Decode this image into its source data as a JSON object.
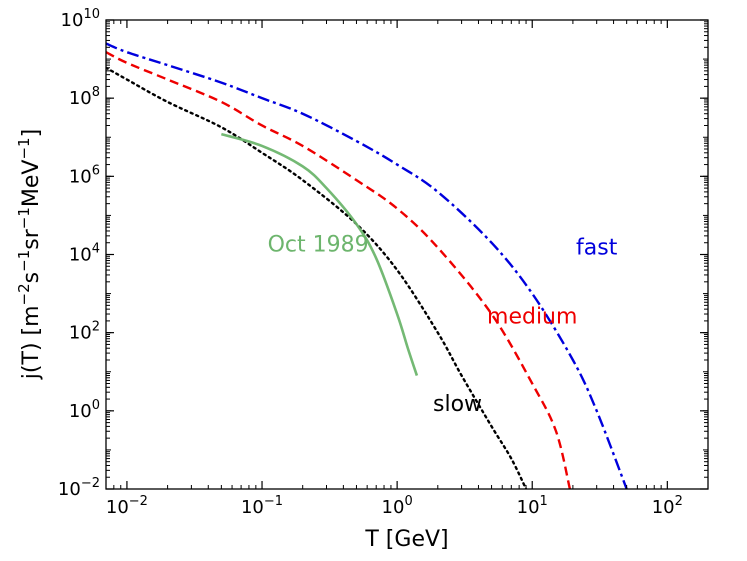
{
  "chart_data": {
    "type": "line",
    "title": "",
    "xlabel": "T [GeV]",
    "ylabel_parts": {
      "prefix": "j(T) [m",
      "exp1": "−2",
      "mid1": "s",
      "exp2": "−1",
      "mid2": "sr",
      "exp3": "−1",
      "mid3": "MeV",
      "exp4": "−1",
      "suffix": "]"
    },
    "xscale": "log",
    "yscale": "log",
    "xlim": [
      0.007,
      200
    ],
    "ylim": [
      0.01,
      10000000000
    ],
    "x_ticks": [
      {
        "value": 0.01,
        "base": "10",
        "exp": "−2"
      },
      {
        "value": 0.1,
        "base": "10",
        "exp": "−1"
      },
      {
        "value": 1,
        "base": "10",
        "exp": "0"
      },
      {
        "value": 10,
        "base": "10",
        "exp": "1"
      },
      {
        "value": 100,
        "base": "10",
        "exp": "2"
      }
    ],
    "y_ticks": [
      {
        "value": 0.01,
        "base": "10",
        "exp": "−2"
      },
      {
        "value": 1,
        "base": "10",
        "exp": "0"
      },
      {
        "value": 100,
        "base": "10",
        "exp": "2"
      },
      {
        "value": 10000,
        "base": "10",
        "exp": "4"
      },
      {
        "value": 1000000,
        "base": "10",
        "exp": "6"
      },
      {
        "value": 100000000,
        "base": "10",
        "exp": "8"
      },
      {
        "value": 10000000000,
        "base": "10",
        "exp": "10"
      }
    ],
    "grid": false,
    "series": [
      {
        "name": "slow",
        "color": "#000000",
        "style": "dotted",
        "label_at": {
          "x": 2.8,
          "y": 1.0
        },
        "x": [
          0.007,
          0.01,
          0.02,
          0.05,
          0.1,
          0.2,
          0.5,
          1,
          2,
          3,
          5,
          7,
          9
        ],
        "y": [
          600000000,
          300000000,
          80000000,
          18000000,
          4000000,
          800000,
          60000,
          4000,
          100,
          8,
          0.4,
          0.06,
          0.01
        ]
      },
      {
        "name": "medium",
        "color": "#ee0000",
        "style": "dashed",
        "label_at": {
          "x": 10,
          "y": 170
        },
        "x": [
          0.007,
          0.01,
          0.02,
          0.05,
          0.1,
          0.2,
          0.5,
          1,
          2,
          5,
          10,
          15,
          19
        ],
        "y": [
          1500000000,
          800000000,
          300000000,
          80000000,
          20000000,
          6000000,
          800000,
          150000,
          15000,
          300,
          5,
          0.3,
          0.01
        ]
      },
      {
        "name": "fast",
        "color": "#0000dd",
        "style": "dashdot",
        "label_at": {
          "x": 30,
          "y": 10000
        },
        "x": [
          0.007,
          0.01,
          0.02,
          0.05,
          0.1,
          0.2,
          0.5,
          1,
          2,
          5,
          10,
          20,
          30,
          50
        ],
        "y": [
          2500000000,
          1500000000,
          700000000,
          250000000,
          100000000,
          40000000,
          8000000,
          2000000,
          400000,
          20000,
          1000,
          20,
          1,
          0.01
        ]
      },
      {
        "name": "Oct 1989",
        "color": "#6db56d",
        "style": "solid",
        "label_at": {
          "x": 0.26,
          "y": 12000
        },
        "x": [
          0.05,
          0.1,
          0.2,
          0.3,
          0.5,
          0.7,
          1.0,
          1.2,
          1.4
        ],
        "y": [
          12000000,
          6000000,
          1800000,
          500000,
          60000,
          8000,
          300,
          40,
          8
        ]
      }
    ]
  }
}
